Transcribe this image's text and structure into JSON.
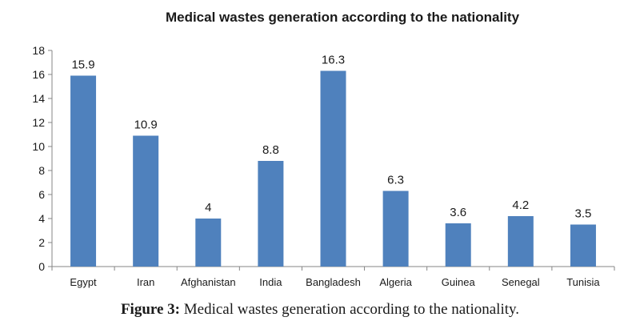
{
  "chart_data": {
    "type": "bar",
    "title": "Medical wastes generation according to the nationality",
    "xlabel": "",
    "ylabel": "",
    "categories": [
      "Egypt",
      "Iran",
      "Afghanistan",
      "India",
      "Bangladesh",
      "Algeria",
      "Guinea",
      "Senegal",
      "Tunisia"
    ],
    "values": [
      15.9,
      10.9,
      4,
      8.8,
      16.3,
      6.3,
      3.6,
      4.2,
      3.5
    ],
    "value_labels": [
      "15.9",
      "10.9",
      "4",
      "8.8",
      "16.3",
      "6.3",
      "3.6",
      "4.2",
      "3.5"
    ],
    "ylim": [
      0,
      18
    ],
    "yticks": [
      "0",
      "2",
      "4",
      "6",
      "8",
      "10",
      "12",
      "14",
      "16",
      "18"
    ],
    "grid": false,
    "legend": "none",
    "bar_color": "#4f81bd"
  },
  "caption": {
    "label": "Figure 3:",
    "text": " Medical wastes generation according to the nationality."
  }
}
